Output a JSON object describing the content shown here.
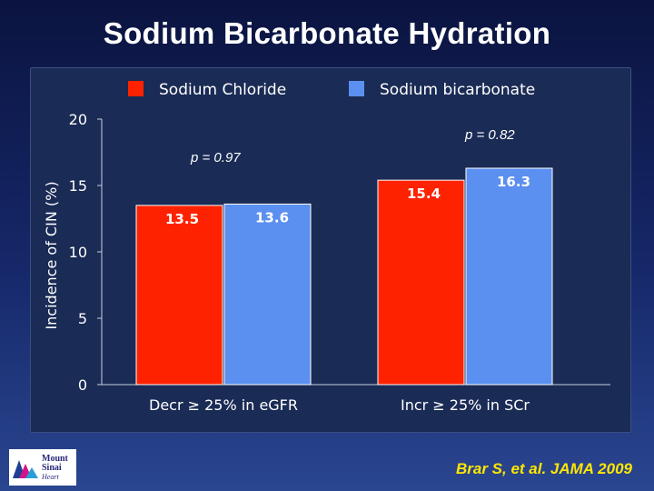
{
  "slide": {
    "title": "Sodium Bicarbonate Hydration",
    "citation": "Brar S, et al. JAMA 2009"
  },
  "logo": {
    "line1": "Mount",
    "line2": "Sinai",
    "line3": "Heart"
  },
  "chart_data": {
    "type": "bar",
    "ylabel": "Incidence of CIN (%)",
    "ylim": [
      0,
      20
    ],
    "yticks": [
      0,
      5,
      10,
      15,
      20
    ],
    "categories": [
      "Decr ≥ 25% in eGFR",
      "Incr ≥ 25% in SCr"
    ],
    "series": [
      {
        "name": "Sodium Chloride",
        "color": "#ff2200",
        "values": [
          13.5,
          15.4
        ],
        "labels": [
          "13.5",
          "15.4"
        ]
      },
      {
        "name": "Sodium bicarbonate",
        "color": "#5b8ff0",
        "values": [
          13.6,
          16.3
        ],
        "labels": [
          "13.6",
          "16.3"
        ]
      }
    ],
    "annotations": [
      "p = 0.97",
      "p = 0.82"
    ],
    "legend_position": "top",
    "grid": false
  }
}
